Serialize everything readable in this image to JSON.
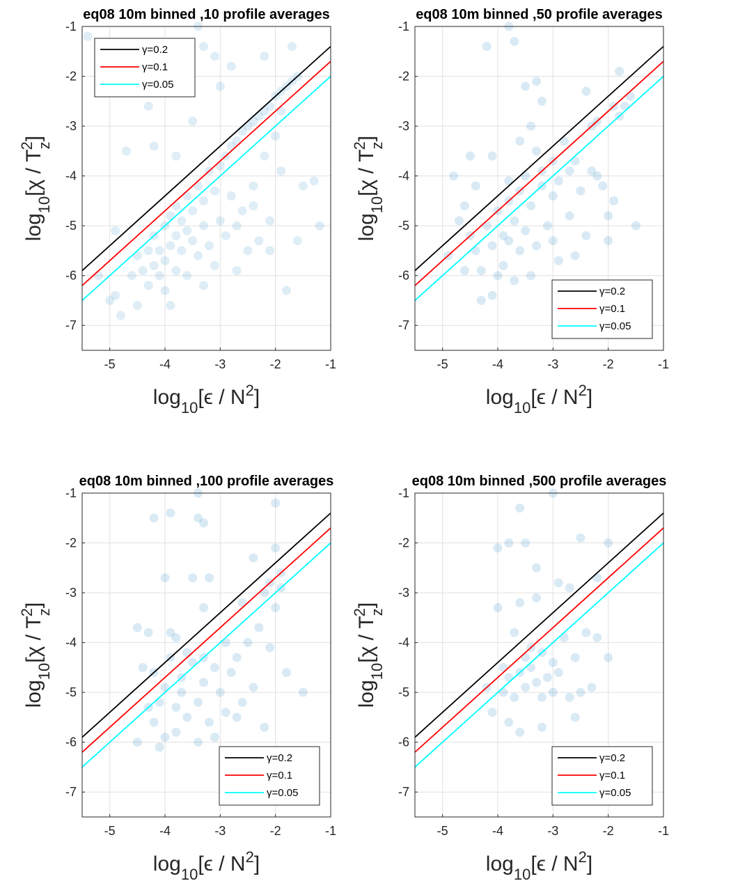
{
  "chart_data": [
    {
      "type": "scatter",
      "title": "eq08 10m binned ,10 profile averages",
      "xlabel": [
        "log",
        "10",
        "[ϵ / N",
        "2",
        "]"
      ],
      "ylabel": [
        "log",
        "10",
        "[χ / T",
        "z",
        "2",
        "]"
      ],
      "xlim": [
        -5.5,
        -1
      ],
      "ylim": [
        -7.5,
        -1
      ],
      "xticks": [
        -5,
        -4,
        -3,
        -2,
        -1
      ],
      "yticks": [
        -7,
        -6,
        -5,
        -4,
        -3,
        -2,
        -1
      ],
      "grid": true,
      "legend": "northwest",
      "points": {
        "color": "#0072bd",
        "alpha": 0.13,
        "x": [
          -5.4,
          -4.7,
          -4.9,
          -5.2,
          -5.0,
          -4.8,
          -4.6,
          -4.5,
          -4.4,
          -4.3,
          -4.3,
          -4.2,
          -4.2,
          -4.1,
          -4.1,
          -4.0,
          -4.0,
          -4.0,
          -3.9,
          -3.9,
          -3.8,
          -3.8,
          -3.8,
          -3.7,
          -3.7,
          -3.6,
          -3.6,
          -3.6,
          -3.5,
          -3.5,
          -3.4,
          -3.4,
          -3.3,
          -3.3,
          -3.2,
          -3.2,
          -3.1,
          -3.1,
          -3.0,
          -3.0,
          -2.9,
          -2.9,
          -2.8,
          -2.8,
          -2.7,
          -2.7,
          -2.6,
          -2.6,
          -2.5,
          -2.5,
          -2.4,
          -2.4,
          -2.3,
          -2.3,
          -2.2,
          -2.2,
          -2.1,
          -2.1,
          -2.0,
          -2.0,
          -1.9,
          -1.9,
          -1.8,
          -1.8,
          -1.7,
          -1.6,
          -1.5,
          -1.3,
          -1.2,
          -1.7,
          -2.2,
          -3.3,
          -3.1,
          -2.8,
          -3.9,
          -4.3,
          -3.4,
          -3.0,
          -4.9,
          -4.5,
          -3.9,
          -3.3,
          -2.7,
          -4.2,
          -3.8,
          -2.1,
          -1.6,
          -2.4,
          -3.5,
          -1.9
        ],
        "y": [
          -1.2,
          -3.5,
          -5.1,
          -6.0,
          -6.5,
          -6.8,
          -6.0,
          -5.6,
          -5.9,
          -5.5,
          -6.2,
          -5.8,
          -5.2,
          -6.0,
          -5.5,
          -5.7,
          -5.0,
          -6.3,
          -5.4,
          -4.8,
          -5.9,
          -5.2,
          -4.6,
          -5.5,
          -4.9,
          -5.1,
          -4.4,
          -6.0,
          -4.7,
          -5.3,
          -4.2,
          -5.6,
          -4.5,
          -5.0,
          -3.9,
          -5.4,
          -4.3,
          -5.8,
          -3.8,
          -4.9,
          -3.6,
          -5.2,
          -3.4,
          -4.4,
          -3.3,
          -5.0,
          -3.1,
          -4.7,
          -3.0,
          -5.5,
          -2.9,
          -4.2,
          -2.8,
          -5.3,
          -2.7,
          -3.6,
          -2.6,
          -4.9,
          -2.4,
          -3.2,
          -2.3,
          -3.9,
          -2.2,
          -6.3,
          -2.1,
          -2.0,
          -4.2,
          -4.1,
          -5.0,
          -1.4,
          -1.6,
          -1.4,
          -1.6,
          -1.8,
          -1.9,
          -2.6,
          -1.0,
          -2.2,
          -6.4,
          -6.6,
          -6.6,
          -6.2,
          -5.9,
          -3.4,
          -3.6,
          -5.5,
          -5.3,
          -4.6,
          -2.9,
          -2.7
        ]
      },
      "series": [
        {
          "name": "γ=0.2",
          "color": "#000000",
          "x": [
            -5.5,
            -1
          ],
          "values": [
            -5.9,
            -1.4
          ]
        },
        {
          "name": "γ=0.1",
          "color": "#ff0000",
          "x": [
            -5.5,
            -1
          ],
          "values": [
            -6.2,
            -1.7
          ]
        },
        {
          "name": "γ=0.05",
          "color": "#00ffff",
          "x": [
            -5.5,
            -1
          ],
          "values": [
            -6.5,
            -2.0
          ]
        }
      ]
    },
    {
      "type": "scatter",
      "title": "eq08 10m binned ,50 profile averages",
      "xlabel": [
        "log",
        "10",
        "[ϵ / N",
        "2",
        "]"
      ],
      "ylabel": [
        "log",
        "10",
        "[χ / T",
        "z",
        "2",
        "]"
      ],
      "xlim": [
        -5.5,
        -1
      ],
      "ylim": [
        -7.5,
        -1
      ],
      "xticks": [
        -5,
        -4,
        -3,
        -2,
        -1
      ],
      "yticks": [
        -7,
        -6,
        -5,
        -4,
        -3,
        -2,
        -1
      ],
      "grid": true,
      "legend": "southeast",
      "points": {
        "color": "#0072bd",
        "alpha": 0.15,
        "x": [
          -4.2,
          -3.8,
          -3.7,
          -3.5,
          -3.3,
          -3.3,
          -3.4,
          -4.5,
          -4.1,
          -4.4,
          -4.7,
          -4.9,
          -4.5,
          -4.4,
          -4.3,
          -4.2,
          -4.1,
          -4.0,
          -4.0,
          -3.9,
          -3.9,
          -3.8,
          -3.8,
          -3.7,
          -3.7,
          -3.6,
          -3.6,
          -3.5,
          -3.5,
          -3.4,
          -3.3,
          -3.2,
          -3.2,
          -3.1,
          -3.0,
          -3.0,
          -2.9,
          -2.9,
          -2.8,
          -2.7,
          -2.6,
          -2.5,
          -2.4,
          -2.3,
          -2.3,
          -2.2,
          -2.1,
          -2.0,
          -1.9,
          -1.8,
          -1.7,
          -1.6,
          -1.8,
          -2.4,
          -2.2,
          -1.5,
          -4.3,
          -4.1,
          -3.4,
          -2.6,
          -4.6,
          -3.0,
          -2.7,
          -3.6,
          -4.8,
          -2.0,
          -1.9,
          -3.8,
          -4.6,
          -3.2
        ],
        "y": [
          -1.4,
          -1.0,
          -1.3,
          -2.2,
          -2.1,
          -3.5,
          -3.0,
          -3.6,
          -3.6,
          -4.2,
          -4.9,
          -5.6,
          -5.2,
          -5.5,
          -5.9,
          -5.0,
          -5.4,
          -6.0,
          -4.7,
          -5.2,
          -5.8,
          -4.5,
          -5.3,
          -4.9,
          -6.1,
          -5.5,
          -4.3,
          -4.0,
          -5.1,
          -4.6,
          -5.4,
          -4.2,
          -3.9,
          -5.0,
          -4.4,
          -3.7,
          -5.7,
          -4.1,
          -3.3,
          -4.8,
          -3.7,
          -4.3,
          -5.2,
          -3.0,
          -3.9,
          -2.9,
          -4.2,
          -4.8,
          -2.6,
          -2.8,
          -2.6,
          -2.4,
          -1.9,
          -2.3,
          -4.0,
          -5.0,
          -6.5,
          -6.4,
          -6.0,
          -5.6,
          -5.9,
          -5.3,
          -3.9,
          -3.3,
          -4.0,
          -5.3,
          -4.5,
          -4.1,
          -4.6,
          -2.5
        ]
      },
      "series": [
        {
          "name": "γ=0.2",
          "color": "#000000",
          "x": [
            -5.5,
            -1
          ],
          "values": [
            -5.9,
            -1.4
          ]
        },
        {
          "name": "γ=0.1",
          "color": "#ff0000",
          "x": [
            -5.5,
            -1
          ],
          "values": [
            -6.2,
            -1.7
          ]
        },
        {
          "name": "γ=0.05",
          "color": "#00ffff",
          "x": [
            -5.5,
            -1
          ],
          "values": [
            -6.5,
            -2.0
          ]
        }
      ]
    },
    {
      "type": "scatter",
      "title": "eq08 10m binned ,100 profile averages",
      "xlabel": [
        "log",
        "10",
        "[ϵ / N",
        "2",
        "]"
      ],
      "ylabel": [
        "log",
        "10",
        "[χ / T",
        "z",
        "2",
        "]"
      ],
      "xlim": [
        -5.5,
        -1
      ],
      "ylim": [
        -7.5,
        -1
      ],
      "xticks": [
        -5,
        -4,
        -3,
        -2,
        -1
      ],
      "yticks": [
        -7,
        -6,
        -5,
        -4,
        -3,
        -2,
        -1
      ],
      "grid": true,
      "legend": "southeast",
      "points": {
        "color": "#0072bd",
        "alpha": 0.15,
        "x": [
          -3.4,
          -2.0,
          -4.2,
          -3.9,
          -3.4,
          -3.3,
          -2.0,
          -4.0,
          -3.5,
          -3.2,
          -2.4,
          -4.5,
          -4.3,
          -3.9,
          -3.8,
          -3.3,
          -3.3,
          -2.9,
          -2.6,
          -2.2,
          -1.9,
          -2.1,
          -4.4,
          -4.2,
          -4.1,
          -4.2,
          -4.0,
          -4.1,
          -3.9,
          -3.8,
          -3.7,
          -3.7,
          -3.6,
          -3.5,
          -3.4,
          -3.4,
          -3.3,
          -3.2,
          -3.1,
          -3.0,
          -2.9,
          -2.8,
          -2.7,
          -2.6,
          -2.5,
          -2.4,
          -2.3,
          -2.2,
          -2.0,
          -1.8,
          -1.5,
          -4.5,
          -3.8,
          -3.1,
          -2.7,
          -4.3,
          -3.6,
          -1.9,
          -2.1,
          -4.0
        ],
        "y": [
          -1.0,
          -1.2,
          -1.5,
          -1.4,
          -1.5,
          -1.6,
          -2.1,
          -2.7,
          -2.7,
          -2.7,
          -2.3,
          -3.7,
          -3.8,
          -3.8,
          -3.9,
          -3.3,
          -4.3,
          -4.0,
          -3.2,
          -3.0,
          -2.9,
          -4.1,
          -4.5,
          -4.6,
          -5.2,
          -5.6,
          -5.9,
          -6.1,
          -4.3,
          -5.3,
          -4.7,
          -5.0,
          -5.5,
          -4.4,
          -6.0,
          -5.2,
          -4.8,
          -5.6,
          -4.5,
          -5.0,
          -5.4,
          -4.6,
          -4.3,
          -5.2,
          -4.0,
          -4.9,
          -3.7,
          -5.7,
          -3.3,
          -4.6,
          -5.0,
          -6.0,
          -5.8,
          -5.9,
          -5.5,
          -5.3,
          -4.2,
          -2.6,
          -2.8,
          -4.9
        ]
      },
      "series": [
        {
          "name": "γ=0.2",
          "color": "#000000",
          "x": [
            -5.5,
            -1
          ],
          "values": [
            -5.9,
            -1.4
          ]
        },
        {
          "name": "γ=0.1",
          "color": "#ff0000",
          "x": [
            -5.5,
            -1
          ],
          "values": [
            -6.2,
            -1.7
          ]
        },
        {
          "name": "γ=0.05",
          "color": "#00ffff",
          "x": [
            -5.5,
            -1
          ],
          "values": [
            -6.5,
            -2.0
          ]
        }
      ]
    },
    {
      "type": "scatter",
      "title": "eq08 10m binned ,500 profile averages",
      "xlabel": [
        "log",
        "10",
        "[ϵ / N",
        "2",
        "]"
      ],
      "ylabel": [
        "log",
        "10",
        "[χ / T",
        "z",
        "2",
        "]"
      ],
      "xlim": [
        -5.5,
        -1
      ],
      "ylim": [
        -7.5,
        -1
      ],
      "xticks": [
        -5,
        -4,
        -3,
        -2,
        -1
      ],
      "yticks": [
        -7,
        -6,
        -5,
        -4,
        -3,
        -2,
        -1
      ],
      "grid": true,
      "legend": "southeast",
      "points": {
        "color": "#0072bd",
        "alpha": 0.15,
        "x": [
          -3.0,
          -3.6,
          -3.8,
          -3.5,
          -4.0,
          -3.3,
          -2.5,
          -2.0,
          -2.9,
          -2.7,
          -2.2,
          -3.6,
          -3.3,
          -4.0,
          -3.7,
          -2.8,
          -2.4,
          -2.2,
          -2.0,
          -3.4,
          -3.2,
          -3.0,
          -2.6,
          -3.9,
          -3.8,
          -3.6,
          -3.5,
          -3.4,
          -3.1,
          -3.0,
          -2.7,
          -2.5,
          -2.3,
          -3.7,
          -3.2,
          -2.6,
          -4.1,
          -3.8,
          -3.6,
          -3.2,
          -3.9,
          -2.9,
          -3.3,
          -4.2,
          -3.5
        ],
        "y": [
          -1.0,
          -1.3,
          -2.0,
          -2.0,
          -2.1,
          -2.5,
          -1.9,
          -2.0,
          -2.8,
          -2.9,
          -2.7,
          -3.2,
          -3.1,
          -3.3,
          -3.8,
          -3.9,
          -3.8,
          -3.9,
          -4.3,
          -4.1,
          -4.2,
          -4.4,
          -4.3,
          -4.5,
          -4.7,
          -4.6,
          -4.9,
          -4.5,
          -4.7,
          -5.0,
          -5.1,
          -5.0,
          -4.9,
          -5.1,
          -5.1,
          -5.5,
          -5.4,
          -5.6,
          -5.8,
          -5.7,
          -5.0,
          -4.6,
          -4.8,
          -4.9,
          -4.3
        ]
      },
      "series": [
        {
          "name": "γ=0.2",
          "color": "#000000",
          "x": [
            -5.5,
            -1
          ],
          "values": [
            -5.9,
            -1.4
          ]
        },
        {
          "name": "γ=0.1",
          "color": "#ff0000",
          "x": [
            -5.5,
            -1
          ],
          "values": [
            -6.2,
            -1.7
          ]
        },
        {
          "name": "γ=0.05",
          "color": "#00ffff",
          "x": [
            -5.5,
            -1
          ],
          "values": [
            -6.5,
            -2.0
          ]
        }
      ]
    }
  ]
}
